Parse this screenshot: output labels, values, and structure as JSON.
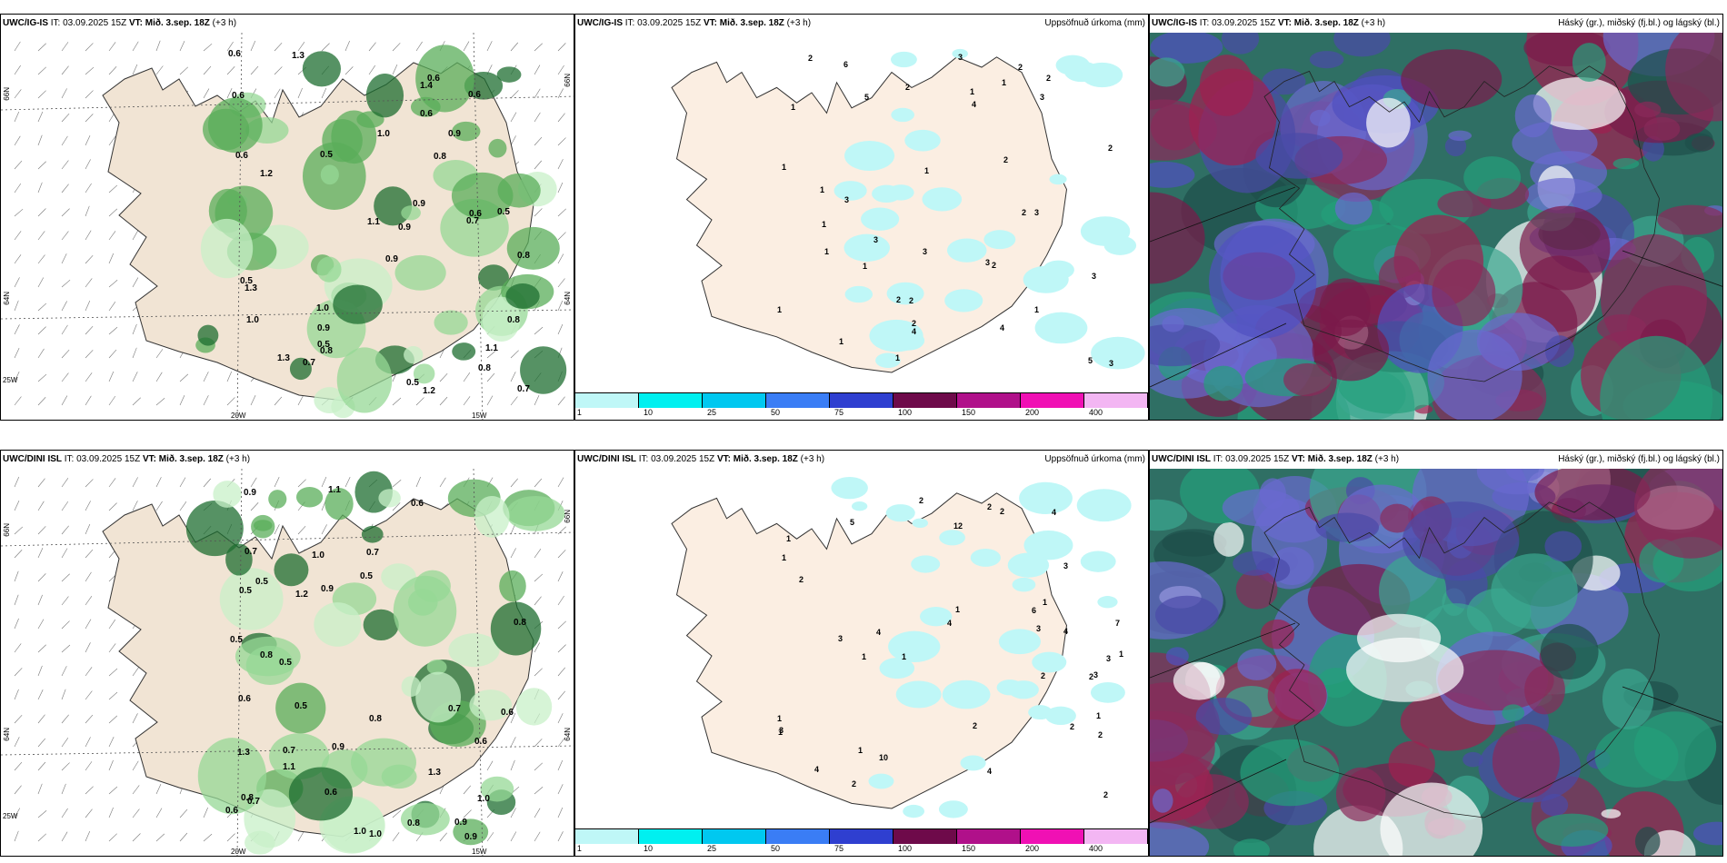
{
  "panels": [
    {
      "header_model": "UWC/IG-IS",
      "header_it": "IT: 03.09.2025 15Z",
      "header_vt_prefix": "VT:",
      "header_vt": "Mið. 3.sep. 18Z",
      "header_lead": "(+3 h)",
      "lat_top": "66N",
      "lat_bottom": "64N",
      "lon_left": "25W",
      "lon_mid": "20W",
      "lon_right": "15W",
      "precip_values": [
        "0.7",
        "0.6",
        "1.1",
        "0.8",
        "1.0",
        "0.9",
        "0.5",
        "1.3",
        "0.6",
        "1.2",
        "1.0",
        "0.9",
        "0.5",
        "1.1",
        "0.8",
        "0.6",
        "0.9",
        "1.3",
        "0.7",
        "0.6",
        "0.8",
        "0.5",
        "1.2",
        "0.6",
        "0.5",
        "1.0",
        "0.9",
        "1.3",
        "0.8",
        "0.6",
        "0.7",
        "0.9",
        "1.4",
        "0.5",
        "0.6",
        "0.8"
      ]
    },
    {
      "header_model": "UWC/IG-IS",
      "header_it": "IT: 03.09.2025 15Z",
      "header_vt_prefix": "VT:",
      "header_vt": "Mið. 3.sep. 18Z",
      "header_lead": "(+3 h)",
      "right_title": "Uppsöfnuð úrkoma (mm)",
      "accum_values": [
        "1",
        "3",
        "1",
        "2",
        "3",
        "2",
        "1",
        "2",
        "3",
        "4",
        "2",
        "3",
        "1",
        "2",
        "4",
        "3",
        "1",
        "2",
        "3",
        "5",
        "1",
        "2",
        "3",
        "4",
        "1",
        "1",
        "2",
        "6",
        "2",
        "1",
        "5",
        "2",
        "1",
        "3",
        "1",
        "1",
        "1",
        "2",
        "3"
      ]
    },
    {
      "header_model": "UWC/IG-IS",
      "header_it": "IT: 03.09.2025 15Z",
      "header_vt_prefix": "VT:",
      "header_vt": "Mið. 3.sep. 18Z",
      "header_lead": "(+3 h)",
      "right_title": "Háský (gr.), miðský (fj.bl.) og lágský (bl.)"
    },
    {
      "header_model": "UWC/DINI ISL",
      "header_it": "IT: 03.09.2025 15Z",
      "header_vt_prefix": "VT:",
      "header_vt": "Mið. 3.sep. 18Z",
      "header_lead": "(+3 h)",
      "lat_top": "66N",
      "lat_bottom": "64N",
      "lon_left": "25W",
      "lon_mid": "20W",
      "lon_right": "15W",
      "precip_values": [
        "0.7",
        "0.6",
        "1.0",
        "0.5",
        "0.8",
        "0.6",
        "1.1",
        "0.9",
        "0.6",
        "1.2",
        "0.5",
        "1.0",
        "0.8",
        "0.7",
        "0.9",
        "0.6",
        "1.3",
        "0.5",
        "1.1",
        "0.7",
        "0.8",
        "0.6",
        "0.9",
        "1.0",
        "0.5",
        "0.8",
        "0.9",
        "0.7",
        "1.3",
        "0.5",
        "0.6",
        "1.0",
        "0.7",
        "0.5",
        "0.9",
        "0.8"
      ]
    },
    {
      "header_model": "UWC/DINI ISL",
      "header_it": "IT: 03.09.2025 15Z",
      "header_vt_prefix": "VT:",
      "header_vt": "Mið. 3.sep. 18Z",
      "header_lead": "(+3 h)",
      "right_title": "Uppsöfnuð úrkoma (mm)",
      "accum_values": [
        "1",
        "1",
        "4",
        "4",
        "2",
        "1",
        "1",
        "2",
        "3",
        "2",
        "1",
        "2",
        "4",
        "3",
        "2",
        "1",
        "3",
        "2",
        "1",
        "6",
        "7",
        "10",
        "12",
        "3",
        "5",
        "2",
        "4",
        "3",
        "1",
        "2",
        "1",
        "4",
        "1",
        "2",
        "3",
        "2",
        "1",
        "2",
        "4"
      ]
    },
    {
      "header_model": "UWC/DINI ISL",
      "header_it": "IT: 03.09.2025 15Z",
      "header_vt_prefix": "VT:",
      "header_vt": "Mið. 3.sep. 18Z",
      "header_lead": "(+3 h)",
      "right_title": "Háský (gr.), miðský (fj.bl.) og lágský (bl.)"
    }
  ],
  "legend": {
    "ticks": [
      "1",
      "10",
      "25",
      "50",
      "75",
      "100",
      "150",
      "200",
      "400"
    ],
    "colors": [
      "#bff7f7",
      "#00f0f0",
      "#00c8f0",
      "#3a7df5",
      "#2f3fd0",
      "#6e0a4a",
      "#b0108a",
      "#f010b4",
      "#f3b6f3"
    ]
  }
}
